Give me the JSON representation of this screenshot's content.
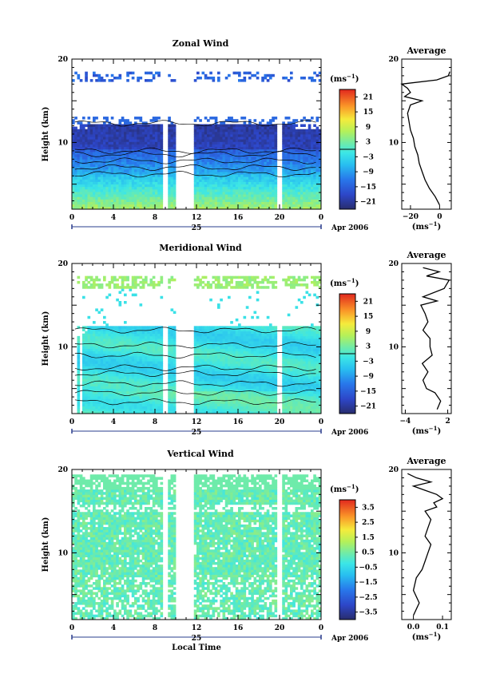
{
  "chart_data": [
    {
      "type": "heatmap",
      "title": "Zonal Wind",
      "ylabel": "Height (km)",
      "ylim": [
        2,
        20
      ],
      "yticks": [
        "20",
        "10"
      ],
      "xlim": [
        0,
        24
      ],
      "xticks": [
        "0",
        "4",
        "8",
        "12",
        "16",
        "20",
        "0"
      ],
      "date_day": "25",
      "date_label": "Apr 2006",
      "colorbar": {
        "unit": "(ms",
        "unit_sup": "−1",
        "unit_close": ")",
        "ticks": [
          "21",
          "15",
          "9",
          "3",
          "−3",
          "−9",
          "−15",
          "−21"
        ],
        "range": [
          -24,
          24
        ],
        "zero_line": 0
      },
      "missing_columns_hours": [
        8.8,
        10.0,
        10.3,
        11.5,
        19.8
      ],
      "profile": {
        "title": "Average",
        "xticks": [
          "−20",
          "0"
        ],
        "xtick_values": [
          -20,
          0
        ],
        "xlim": [
          -26,
          8
        ],
        "xlabel": "(ms",
        "xlabel_sup": "−1",
        "xlabel_close": ")",
        "yticks": [
          "20",
          "10"
        ],
        "heights": [
          2.5,
          3.5,
          4.5,
          5.5,
          6.5,
          7.5,
          8.5,
          9.5,
          10.5,
          11.5,
          12.5,
          13.5,
          14.5,
          15.0,
          15.5,
          16.0,
          16.5,
          17.0,
          17.5,
          18.0,
          18.5
        ],
        "values": [
          0,
          -3,
          -7,
          -10,
          -12,
          -14,
          -15,
          -17,
          -18,
          -20,
          -21,
          -22,
          -20,
          -12,
          -24,
          -20,
          -22,
          -26,
          -2,
          6,
          7
        ]
      }
    },
    {
      "type": "heatmap",
      "title": "Meridional Wind",
      "ylabel": "Height (km)",
      "ylim": [
        2,
        20
      ],
      "yticks": [
        "20",
        "10"
      ],
      "xlim": [
        0,
        24
      ],
      "xticks": [
        "0",
        "4",
        "8",
        "12",
        "16",
        "20",
        "0"
      ],
      "date_day": "25",
      "date_label": "Apr 2006",
      "colorbar": {
        "unit": "(ms",
        "unit_sup": "−1",
        "unit_close": ")",
        "ticks": [
          "21",
          "15",
          "9",
          "3",
          "−3",
          "−9",
          "−15",
          "−21"
        ],
        "range": [
          -24,
          24
        ],
        "zero_line": 0
      },
      "missing_columns_hours": [
        8.8,
        10.0,
        10.3,
        11.5,
        19.8
      ],
      "profile": {
        "title": "Average",
        "xticks": [
          "−4",
          "2"
        ],
        "xtick_values": [
          -4,
          2
        ],
        "xlim": [
          -4.5,
          2.5
        ],
        "xlabel": "(ms",
        "xlabel_sup": "−1",
        "xlabel_close": ")",
        "yticks": [
          "20",
          "10"
        ],
        "heights": [
          2.5,
          3.5,
          4.5,
          5.0,
          6.0,
          7.0,
          8.0,
          9.0,
          10.0,
          11.0,
          12.0,
          13.0,
          14.0,
          15.0,
          15.5,
          16.0,
          17.0,
          18.0,
          18.5,
          19.0,
          19.5
        ],
        "values": [
          0.5,
          1.0,
          0.2,
          -1.0,
          -1.5,
          -0.8,
          -1.6,
          -0.2,
          -0.5,
          -0.5,
          -1.5,
          -0.8,
          -1.2,
          -1.8,
          0.5,
          -1.5,
          1.5,
          2.2,
          -1.0,
          0.8,
          -1.5
        ]
      }
    },
    {
      "type": "heatmap",
      "title": "Vertical Wind",
      "ylabel": "Height (km)",
      "xlabel": "Local Time",
      "ylim": [
        2,
        20
      ],
      "yticks": [
        "20",
        "10"
      ],
      "xlim": [
        0,
        24
      ],
      "xticks": [
        "0",
        "4",
        "8",
        "12",
        "16",
        "20",
        "0"
      ],
      "date_day": "25",
      "date_label": "Apr 2006",
      "colorbar": {
        "unit": "(ms",
        "unit_sup": "−1",
        "unit_close": ")",
        "ticks": [
          "3.5",
          "2.5",
          "1.5",
          "0.5",
          "−0.5",
          "−1.5",
          "−2.5",
          "−3.5"
        ],
        "range": [
          -4,
          4
        ],
        "zero_line": null
      },
      "missing_columns_hours": [
        8.8,
        10.0,
        10.3,
        11.5,
        19.8
      ],
      "profile": {
        "title": "Average",
        "xticks": [
          "0.0",
          "0.1"
        ],
        "xtick_values": [
          0.0,
          0.1
        ],
        "xlim": [
          -0.04,
          0.13
        ],
        "xlabel": "(ms",
        "xlabel_sup": "−1",
        "xlabel_close": ")",
        "yticks": [
          "20",
          "10"
        ],
        "heights": [
          2.5,
          4.0,
          5.5,
          7.0,
          8.0,
          9.0,
          10.0,
          11.0,
          12.0,
          13.0,
          14.0,
          15.0,
          15.5,
          16.0,
          16.5,
          17.0,
          17.5,
          18.0,
          18.5,
          19.0,
          19.5
        ],
        "values": [
          0.0,
          0.02,
          0.0,
          0.01,
          0.03,
          0.04,
          0.05,
          0.06,
          0.04,
          0.05,
          0.06,
          0.04,
          0.08,
          0.07,
          0.1,
          0.08,
          0.04,
          0.0,
          0.06,
          0.01,
          -0.02
        ]
      }
    }
  ]
}
